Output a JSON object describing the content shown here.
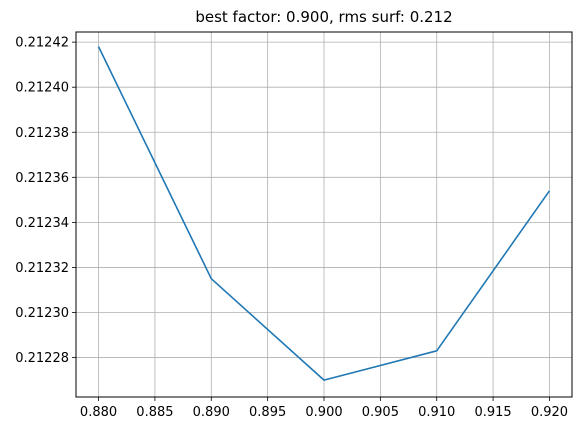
{
  "chart_data": {
    "type": "line",
    "title": "best factor: 0.900, rms surf: 0.212",
    "xlabel": "",
    "ylabel": "",
    "x": [
      0.88,
      0.89,
      0.9,
      0.91,
      0.92
    ],
    "series": [
      {
        "values": [
          0.212418,
          0.212315,
          0.21227,
          0.212283,
          0.212354
        ],
        "color": "#1f77b4"
      }
    ],
    "xlim": [
      0.878,
      0.922
    ],
    "ylim": [
      0.2122625,
      0.2124245
    ],
    "xticks": [
      0.88,
      0.885,
      0.89,
      0.895,
      0.9,
      0.905,
      0.91,
      0.915,
      0.92
    ],
    "xtick_labels": [
      "0.880",
      "0.885",
      "0.890",
      "0.895",
      "0.900",
      "0.905",
      "0.910",
      "0.915",
      "0.920"
    ],
    "yticks": [
      0.21228,
      0.2123,
      0.21232,
      0.21234,
      0.21236,
      0.21238,
      0.2124,
      0.21242
    ],
    "ytick_labels": [
      "0.21228",
      "0.21230",
      "0.21232",
      "0.21234",
      "0.21236",
      "0.21238",
      "0.21240",
      "0.21242"
    ],
    "grid": true,
    "grid_color": "#b0b0b0",
    "axis_color": "#000000"
  }
}
